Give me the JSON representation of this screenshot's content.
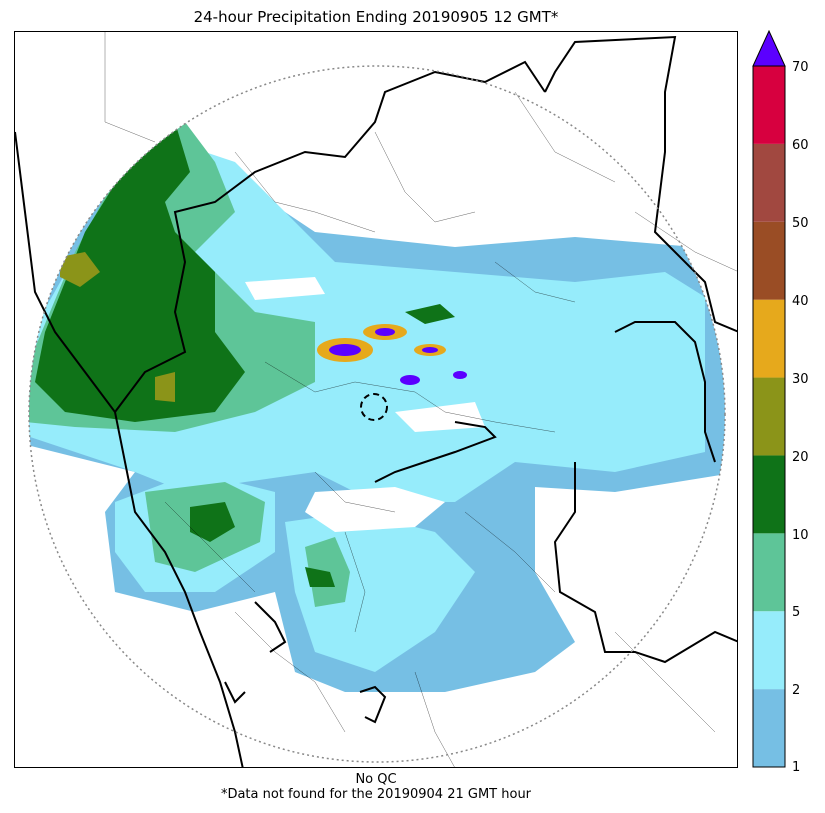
{
  "title": "24-hour Precipitation Ending 20190905 12 GMT*",
  "footer": {
    "qc": "No QC",
    "note": "*Data not found for the 20190904 21 GMT hour"
  },
  "colorbar": {
    "labels": [
      "1",
      "2",
      "5",
      "10",
      "20",
      "30",
      "40",
      "50",
      "60",
      "70"
    ],
    "bins": [
      {
        "from": 1,
        "to": 2,
        "color": "#76bfe4"
      },
      {
        "from": 2,
        "to": 5,
        "color": "#96ecfb"
      },
      {
        "from": 5,
        "to": 10,
        "color": "#5ec598"
      },
      {
        "from": 10,
        "to": 20,
        "color": "#0f7318"
      },
      {
        "from": 20,
        "to": 30,
        "color": "#8b9419"
      },
      {
        "from": 30,
        "to": 40,
        "color": "#e6a91c"
      },
      {
        "from": 40,
        "to": 50,
        "color": "#9a4d25"
      },
      {
        "from": 50,
        "to": 60,
        "color": "#a14840"
      },
      {
        "from": 60,
        "to": 70,
        "color": "#d7003f"
      }
    ],
    "overflow_color": "#5b00ff"
  },
  "colors": {
    "lightblue": "#76bfe4",
    "cyan": "#96ecfb",
    "teal": "#5ec598",
    "darkgreen": "#0f7318",
    "olive": "#8b9419",
    "orange": "#e6a91c",
    "purple": "#5b00ff",
    "range_ring": "#888888",
    "border": "#000000"
  }
}
